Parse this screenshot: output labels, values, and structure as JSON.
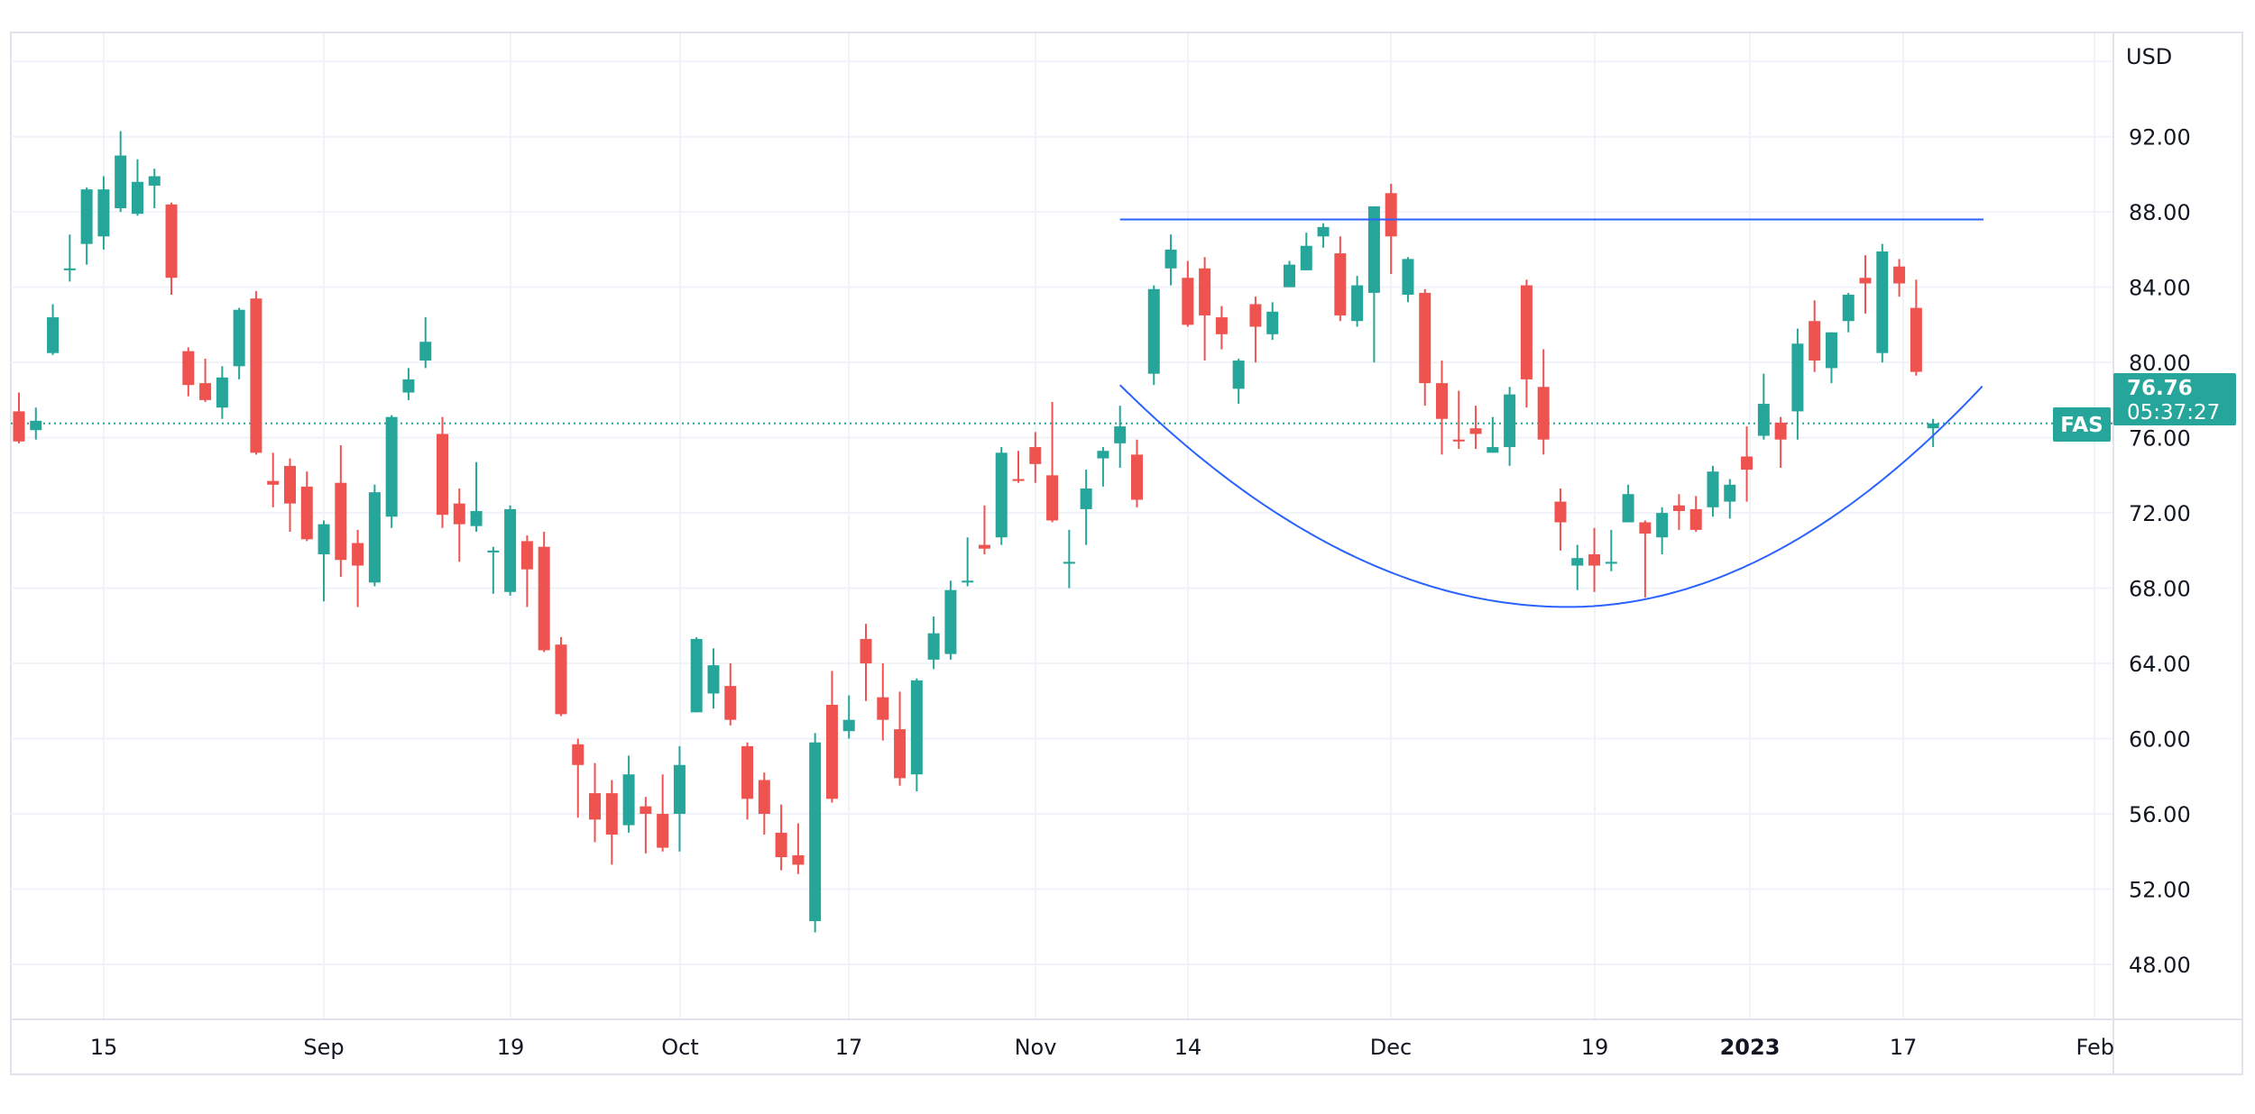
{
  "chart_data": {
    "type": "candlestick",
    "symbol": "FAS",
    "currency": "USD",
    "last_price": "76.76",
    "countdown": "05:37:27",
    "ylim": [
      46,
      96
    ],
    "y_ticks": [
      "92.00",
      "88.00",
      "84.00",
      "80.00",
      "76.00",
      "72.00",
      "68.00",
      "64.00",
      "60.00",
      "56.00",
      "52.00",
      "48.00"
    ],
    "x_ticks": [
      "15",
      "Sep",
      "19",
      "Oct",
      "17",
      "Nov",
      "14",
      "Dec",
      "19",
      "2023",
      "17",
      "Feb"
    ],
    "grid": true,
    "colors": {
      "up": "#26a69a",
      "down": "#ef5350",
      "drawing": "#2962ff"
    },
    "candle_fields": [
      "open",
      "high",
      "low",
      "close"
    ],
    "candles": [
      [
        77.4,
        78.4,
        75.7,
        75.8
      ],
      [
        76.4,
        77.6,
        75.9,
        76.9
      ],
      [
        80.5,
        83.1,
        80.4,
        82.4
      ],
      [
        84.9,
        86.8,
        84.3,
        85.0
      ],
      [
        86.3,
        89.3,
        85.2,
        89.2
      ],
      [
        86.7,
        89.9,
        86.0,
        89.2
      ],
      [
        88.2,
        92.3,
        88.0,
        91.0
      ],
      [
        87.9,
        90.8,
        87.8,
        89.6
      ],
      [
        89.4,
        90.3,
        88.2,
        89.9
      ],
      [
        88.4,
        88.5,
        83.6,
        84.5
      ],
      [
        80.6,
        80.8,
        78.2,
        78.8
      ],
      [
        78.9,
        80.2,
        77.9,
        78.0
      ],
      [
        77.6,
        79.8,
        77.0,
        79.2
      ],
      [
        79.8,
        82.9,
        79.1,
        82.8
      ],
      [
        83.4,
        83.8,
        75.1,
        75.2
      ],
      [
        73.7,
        75.2,
        72.3,
        73.5
      ],
      [
        74.5,
        74.9,
        71.0,
        72.5
      ],
      [
        73.4,
        74.2,
        70.5,
        70.6
      ],
      [
        69.8,
        71.6,
        67.3,
        71.4
      ],
      [
        73.6,
        75.6,
        68.6,
        69.5
      ],
      [
        70.4,
        71.1,
        67.0,
        69.2
      ],
      [
        68.3,
        73.5,
        68.1,
        73.1
      ],
      [
        71.8,
        77.2,
        71.2,
        77.1
      ],
      [
        78.4,
        79.7,
        78.0,
        79.1
      ],
      [
        80.1,
        82.4,
        79.7,
        81.1
      ],
      [
        76.2,
        77.1,
        71.2,
        71.9
      ],
      [
        72.5,
        73.3,
        69.4,
        71.4
      ],
      [
        71.3,
        74.7,
        71.0,
        72.1
      ],
      [
        69.9,
        70.2,
        67.7,
        70.0
      ],
      [
        67.8,
        72.4,
        67.6,
        72.2
      ],
      [
        70.5,
        70.8,
        67.0,
        69.0
      ],
      [
        70.2,
        71.0,
        64.6,
        64.7
      ],
      [
        65.0,
        65.4,
        61.2,
        61.3
      ],
      [
        59.7,
        60.0,
        55.8,
        58.6
      ],
      [
        57.1,
        58.7,
        54.5,
        55.7
      ],
      [
        57.1,
        57.8,
        53.3,
        54.9
      ],
      [
        55.4,
        59.1,
        55.0,
        58.1
      ],
      [
        56.4,
        56.9,
        53.9,
        56.0
      ],
      [
        56.0,
        58.1,
        54.0,
        54.2
      ],
      [
        56.0,
        59.6,
        54.0,
        58.6
      ],
      [
        61.4,
        65.4,
        61.4,
        65.3
      ],
      [
        62.4,
        64.8,
        61.6,
        63.9
      ],
      [
        62.8,
        64.0,
        60.7,
        61.0
      ],
      [
        59.6,
        59.8,
        55.7,
        56.8
      ],
      [
        57.8,
        58.2,
        54.9,
        56.0
      ],
      [
        55.0,
        56.5,
        53.0,
        53.7
      ],
      [
        53.8,
        55.5,
        52.8,
        53.3
      ],
      [
        50.3,
        60.3,
        49.7,
        59.8
      ],
      [
        61.8,
        63.6,
        56.6,
        56.8
      ],
      [
        60.4,
        62.3,
        60.0,
        61.0
      ],
      [
        65.3,
        66.1,
        62.0,
        64.0
      ],
      [
        62.2,
        64.0,
        59.9,
        61.0
      ],
      [
        60.5,
        62.5,
        57.5,
        57.9
      ],
      [
        58.1,
        63.2,
        57.2,
        63.1
      ],
      [
        64.2,
        66.5,
        63.7,
        65.6
      ],
      [
        64.5,
        68.4,
        64.2,
        67.9
      ],
      [
        68.3,
        70.7,
        68.1,
        68.4
      ],
      [
        70.3,
        72.4,
        69.8,
        70.1
      ],
      [
        70.7,
        75.5,
        70.3,
        75.2
      ],
      [
        73.8,
        75.3,
        73.6,
        73.7
      ],
      [
        75.5,
        76.3,
        73.6,
        74.6
      ],
      [
        74.0,
        77.9,
        71.5,
        71.6
      ],
      [
        69.3,
        71.1,
        68.0,
        69.4
      ],
      [
        72.2,
        74.3,
        70.3,
        73.3
      ],
      [
        74.9,
        75.5,
        73.4,
        75.3
      ],
      [
        75.7,
        77.7,
        74.4,
        76.6
      ],
      [
        75.1,
        75.9,
        72.3,
        72.7
      ],
      [
        79.4,
        84.1,
        78.8,
        83.9
      ],
      [
        85.0,
        86.8,
        84.1,
        86.0
      ],
      [
        84.5,
        85.4,
        81.9,
        82.0
      ],
      [
        85.0,
        85.6,
        80.1,
        82.5
      ],
      [
        82.4,
        83.0,
        80.7,
        81.5
      ],
      [
        78.6,
        80.2,
        77.8,
        80.1
      ],
      [
        83.1,
        83.5,
        80.0,
        81.9
      ],
      [
        81.5,
        83.2,
        81.2,
        82.7
      ],
      [
        84.0,
        85.4,
        84.0,
        85.2
      ],
      [
        84.9,
        86.9,
        84.9,
        86.2
      ],
      [
        86.7,
        87.4,
        86.1,
        87.2
      ],
      [
        85.8,
        86.7,
        82.2,
        82.5
      ],
      [
        82.2,
        84.6,
        81.9,
        84.1
      ],
      [
        83.7,
        88.3,
        80.0,
        88.3
      ],
      [
        89.0,
        89.5,
        84.7,
        86.7
      ],
      [
        83.6,
        85.6,
        83.2,
        85.5
      ],
      [
        83.7,
        83.9,
        77.7,
        78.9
      ],
      [
        78.9,
        80.1,
        75.1,
        77.0
      ],
      [
        75.9,
        78.5,
        75.4,
        75.8
      ],
      [
        76.5,
        77.7,
        75.4,
        76.2
      ],
      [
        75.2,
        77.1,
        75.2,
        75.5
      ],
      [
        75.5,
        78.7,
        74.5,
        78.3
      ],
      [
        84.1,
        84.4,
        77.6,
        79.1
      ],
      [
        78.7,
        80.7,
        75.1,
        75.9
      ],
      [
        72.6,
        73.3,
        70.0,
        71.5
      ],
      [
        69.2,
        70.3,
        67.9,
        69.6
      ],
      [
        69.8,
        71.2,
        67.8,
        69.2
      ],
      [
        69.3,
        71.1,
        68.9,
        69.4
      ],
      [
        71.5,
        73.5,
        71.5,
        73.0
      ],
      [
        71.5,
        71.6,
        67.5,
        70.9
      ],
      [
        70.7,
        72.3,
        69.8,
        72.0
      ],
      [
        72.4,
        73.0,
        71.1,
        72.1
      ],
      [
        72.2,
        72.9,
        71.0,
        71.1
      ],
      [
        72.3,
        74.5,
        71.8,
        74.2
      ],
      [
        72.6,
        73.8,
        71.7,
        73.5
      ],
      [
        75.0,
        76.6,
        72.6,
        74.3
      ],
      [
        76.1,
        79.4,
        75.9,
        77.8
      ],
      [
        76.8,
        77.1,
        74.4,
        75.9
      ],
      [
        77.4,
        81.8,
        75.9,
        81.0
      ],
      [
        82.2,
        83.3,
        79.5,
        80.1
      ],
      [
        79.7,
        81.6,
        78.9,
        81.6
      ],
      [
        82.2,
        83.7,
        81.6,
        83.6
      ],
      [
        84.5,
        85.7,
        82.6,
        84.2
      ],
      [
        80.5,
        86.3,
        80.0,
        85.9
      ],
      [
        85.1,
        85.5,
        83.5,
        84.2
      ],
      [
        82.9,
        84.4,
        79.3,
        79.5
      ],
      [
        76.5,
        77.0,
        75.5,
        76.76
      ]
    ],
    "drawings": {
      "horizontal_level": 87.6,
      "rounding_bottom": {
        "rim": 78.8,
        "bottom": 67.0
      }
    }
  }
}
